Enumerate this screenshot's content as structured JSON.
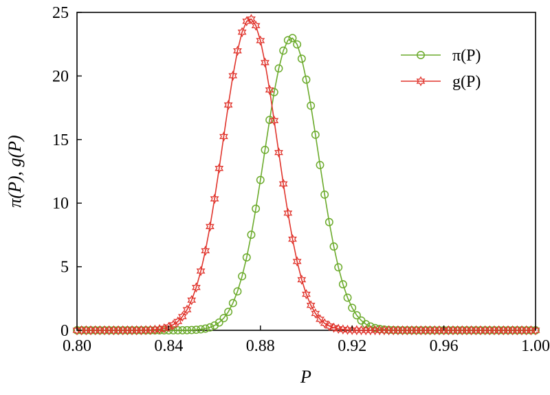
{
  "chart_data": {
    "type": "line",
    "xlabel": "P",
    "ylabel": "π(P), g(P)",
    "xlim": [
      0.8,
      1.0
    ],
    "ylim": [
      0,
      25
    ],
    "xticks": [
      "0.80",
      "0.84",
      "0.88",
      "0.92",
      "0.96",
      "1.00"
    ],
    "xtick_values": [
      0.8,
      0.84,
      0.88,
      0.92,
      0.96,
      1.0
    ],
    "yticks": [
      "0",
      "5",
      "10",
      "15",
      "20",
      "25"
    ],
    "ytick_values": [
      0,
      5,
      10,
      15,
      20,
      25
    ],
    "grid": false,
    "legend_position": "top-right",
    "series": [
      {
        "name": "π(P)",
        "color": "#6aaa2a",
        "marker": "circle",
        "peak_x": 0.8935,
        "peak_y": 23.0,
        "sigma": 0.0117,
        "x_range": [
          0.8,
          1.0
        ],
        "x_step": 0.002
      },
      {
        "name": "g(P)",
        "color": "#e0332b",
        "marker": "star",
        "peak_x": 0.8755,
        "peak_y": 24.5,
        "sigma": 0.0118,
        "x_range": [
          0.8,
          1.0
        ],
        "x_step": 0.002
      }
    ]
  }
}
